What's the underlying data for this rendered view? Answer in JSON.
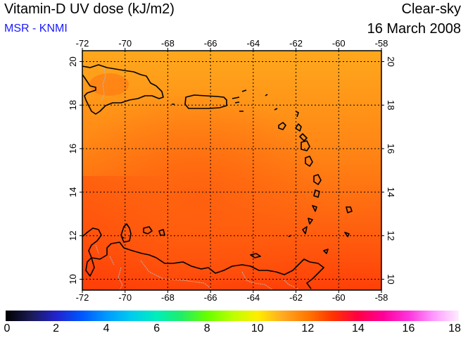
{
  "header": {
    "title": "Vitamin-D UV dose (kJ/m2)",
    "credit": "MSR - KNMI",
    "mode": "Clear-sky",
    "date": "16 March 2008"
  },
  "map": {
    "lon_ticks": [
      "-72",
      "-70",
      "-68",
      "-66",
      "-64",
      "-62",
      "-60",
      "-58"
    ],
    "lat_ticks": [
      "20",
      "18",
      "16",
      "14",
      "12",
      "10"
    ],
    "lon_range": [
      -72,
      -58
    ],
    "lat_range": [
      9.5,
      20.5
    ]
  },
  "colorbar": {
    "ticks": [
      "0",
      "2",
      "4",
      "6",
      "8",
      "10",
      "12",
      "14",
      "16",
      "18"
    ],
    "range": [
      0,
      18
    ]
  },
  "colors": {
    "field_light": "#ffa21a",
    "field_mid": "#ff7a12",
    "field_dark": "#ff3f0a",
    "coast": "#000000",
    "credit": "#1a1aff"
  }
}
